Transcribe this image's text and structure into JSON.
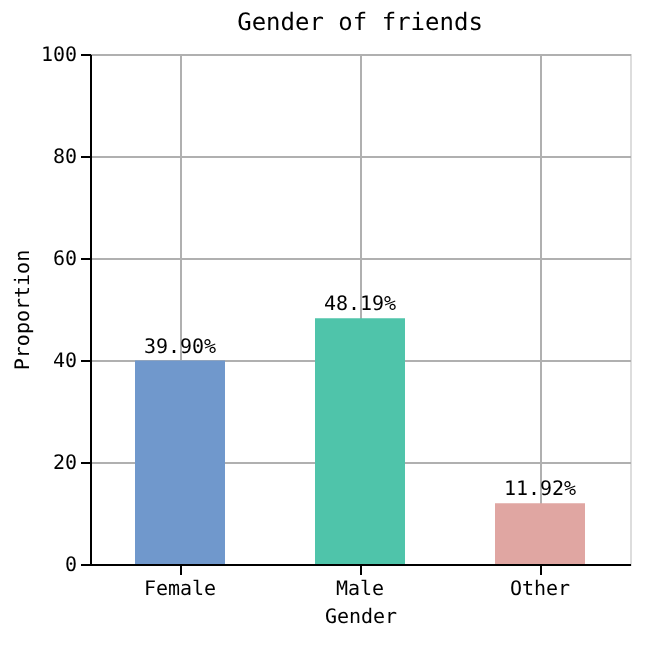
{
  "chart_data": {
    "type": "bar",
    "title": "Gender of friends",
    "xlabel": "Gender",
    "ylabel": "Proportion",
    "categories": [
      "Female",
      "Male",
      "Other"
    ],
    "values": [
      39.9,
      48.19,
      11.92
    ],
    "colors": [
      "#7098cc",
      "#4fc4aa",
      "#e0a6a2"
    ],
    "value_labels": [
      "39.90%",
      "48.19%",
      "11.92%"
    ],
    "ylim": [
      0,
      100
    ],
    "yticks": [
      0,
      20,
      40,
      60,
      80,
      100
    ],
    "grid": true
  }
}
